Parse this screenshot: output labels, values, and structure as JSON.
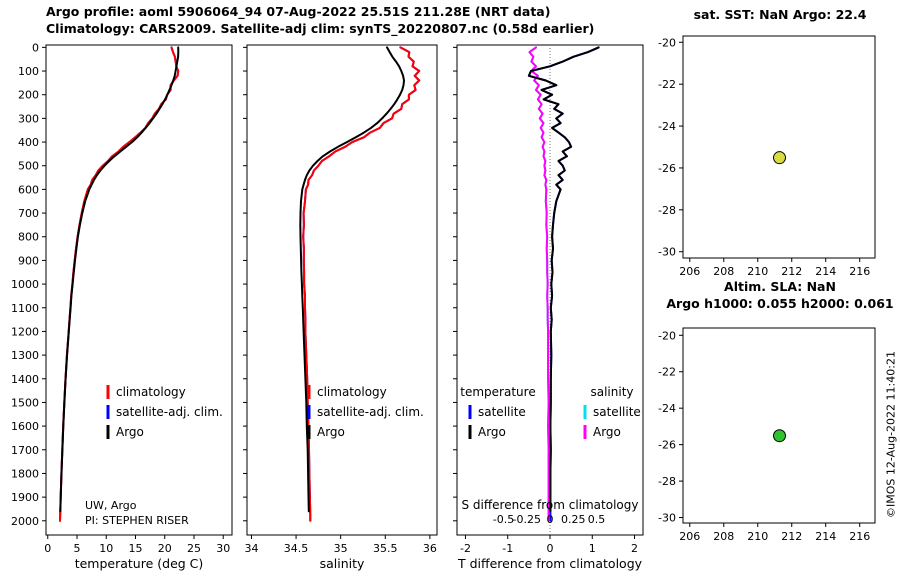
{
  "header": {
    "line1": "Argo profile: aoml 5906064_94 07-Aug-2022 25.51S 211.28E (NRT data)",
    "line2": "Climatology: CARS2009. Satellite-adj clim: synTS_20220807.nc (0.58d earlier)"
  },
  "watermark": "©IMOS 12-Aug-2022 11:40:21",
  "colors": {
    "climatology": "#ff0000",
    "satellite_adj": "#0000ff",
    "argo": "#000000",
    "satellite_T": "#0000ff",
    "satellite_S": "#00e0ee",
    "argo_S": "#ff00ff",
    "axis": "#000000"
  },
  "maps": {
    "sst": {
      "title": "sat. SST: NaN Argo: 22.4",
      "xlim": [
        205.6,
        216.9
      ],
      "ylim": [
        -19.7,
        -30.3
      ],
      "xticks": [
        206,
        208,
        210,
        212,
        214,
        216
      ],
      "yticks": [
        -20,
        -22,
        -24,
        -26,
        -28,
        -30
      ],
      "marker": {
        "lon": 211.28,
        "lat": -25.51,
        "color": "#d9dc40"
      }
    },
    "sla": {
      "title1": "Altim. SLA: NaN",
      "title2": "Argo h1000: 0.055 h2000: 0.061",
      "xlim": [
        205.6,
        216.9
      ],
      "ylim": [
        -19.6,
        -30.3
      ],
      "xticks": [
        206,
        208,
        210,
        212,
        214,
        216
      ],
      "yticks": [
        -20,
        -22,
        -24,
        -26,
        -28,
        -30
      ],
      "marker": {
        "lon": 211.28,
        "lat": -25.51,
        "color": "#2ec42e"
      }
    }
  },
  "chart_data": {
    "type": "line",
    "depth_ticks": [
      0,
      100,
      200,
      300,
      400,
      500,
      600,
      700,
      800,
      900,
      1000,
      1100,
      1200,
      1300,
      1400,
      1500,
      1600,
      1700,
      1800,
      1900,
      2000
    ],
    "depth": [
      0,
      20,
      40,
      60,
      80,
      100,
      120,
      140,
      160,
      180,
      200,
      220,
      240,
      260,
      280,
      300,
      320,
      340,
      360,
      380,
      400,
      420,
      440,
      460,
      480,
      500,
      520,
      540,
      560,
      580,
      600,
      650,
      700,
      750,
      800,
      850,
      900,
      950,
      1000,
      1050,
      1100,
      1150,
      1200,
      1300,
      1400,
      1500,
      1600,
      1700,
      1800,
      1900,
      1960,
      2000
    ],
    "panels": [
      {
        "name": "temperature",
        "xlabel": "temperature (deg C)",
        "xlim": [
          -0.3,
          31.5
        ],
        "xticks": [
          0,
          5,
          10,
          15,
          20,
          25,
          30
        ],
        "legend": [
          {
            "label": "climatology",
            "color": "#ff0000"
          },
          {
            "label": "satellite-adj. clim.",
            "color": "#0000ff"
          },
          {
            "label": "Argo",
            "color": "#000000"
          }
        ],
        "annotations": [
          "UW, Argo",
          "PI: STEPHEN RISER"
        ],
        "argo": [
          22.3,
          22.32,
          22.28,
          22.15,
          22.0,
          21.85,
          21.7,
          21.45,
          21.15,
          20.8,
          20.45,
          20.05,
          19.6,
          19.1,
          18.6,
          18.0,
          17.4,
          16.75,
          16.05,
          15.3,
          14.4,
          13.4,
          12.4,
          11.4,
          10.5,
          9.7,
          9.0,
          8.4,
          7.9,
          7.5,
          7.1,
          6.4,
          5.9,
          5.5,
          5.15,
          4.9,
          4.65,
          4.45,
          4.25,
          4.05,
          3.9,
          3.75,
          3.6,
          3.3,
          3.05,
          2.85,
          2.65,
          2.5,
          2.35,
          2.22,
          2.15,
          2.1
        ]
      },
      {
        "name": "salinity",
        "xlabel": "salinity",
        "xlim": [
          33.95,
          36.08
        ],
        "xticks": [
          34,
          34.5,
          35,
          35.5,
          36
        ],
        "legend": [
          {
            "label": "climatology",
            "color": "#ff0000"
          },
          {
            "label": "satellite-adj. clim.",
            "color": "#0000ff"
          },
          {
            "label": "Argo",
            "color": "#000000"
          }
        ],
        "argo": [
          35.52,
          35.55,
          35.58,
          35.62,
          35.655,
          35.68,
          35.7,
          35.71,
          35.705,
          35.69,
          35.665,
          35.635,
          35.6,
          35.56,
          35.515,
          35.465,
          35.41,
          35.34,
          35.26,
          35.17,
          35.07,
          34.97,
          34.88,
          34.8,
          34.74,
          34.69,
          34.65,
          34.62,
          34.6,
          34.585,
          34.57,
          34.555,
          34.55,
          34.548,
          34.55,
          34.553,
          34.557,
          34.56,
          34.565,
          34.57,
          34.575,
          34.58,
          34.585,
          34.595,
          34.605,
          34.615,
          34.62,
          34.63,
          34.635,
          34.64,
          34.643,
          34.645
        ]
      },
      {
        "name": "difference",
        "xlabel": "T difference from climatology",
        "xlim": [
          -2.2,
          2.2
        ],
        "xticks": [
          -2,
          -1,
          0,
          1,
          2
        ],
        "zero_line": true,
        "secondary": {
          "label": "S difference from climatology",
          "ticks": [
            -0.5,
            -0.25,
            0,
            0.25,
            0.5
          ],
          "scale_to_T": 2.2
        },
        "legend_groups": [
          {
            "header": "temperature",
            "items": [
              {
                "label": "satellite",
                "color": "#0000ff"
              },
              {
                "label": "Argo",
                "color": "#000000"
              }
            ]
          },
          {
            "header": "salinity",
            "items": [
              {
                "label": "satellite",
                "color": "#00e0ee"
              },
              {
                "label": "Argo",
                "color": "#ff00ff"
              }
            ]
          }
        ],
        "t_diff": [
          1.15,
          0.9,
          0.55,
          0.3,
          0.0,
          -0.45,
          -0.5,
          -0.1,
          0.15,
          -0.2,
          0.05,
          -0.15,
          0.2,
          0.1,
          0.3,
          0.15,
          0.25,
          0.05,
          0.2,
          0.35,
          0.45,
          0.5,
          0.3,
          0.4,
          0.2,
          0.3,
          0.35,
          0.2,
          0.3,
          0.15,
          0.25,
          0.15,
          0.1,
          0.07,
          0.05,
          0.07,
          0.04,
          0.06,
          0.03,
          0.05,
          0.02,
          0.04,
          0.02,
          0.03,
          0.02,
          0.02,
          0.01,
          0.02,
          0.01,
          0.01,
          0.01,
          0.01
        ],
        "s_diff": [
          -0.15,
          -0.22,
          -0.18,
          -0.2,
          -0.15,
          -0.2,
          -0.13,
          -0.17,
          -0.12,
          -0.15,
          -0.1,
          -0.13,
          -0.09,
          -0.12,
          -0.08,
          -0.11,
          -0.07,
          -0.1,
          -0.07,
          -0.09,
          -0.06,
          -0.08,
          -0.06,
          -0.07,
          -0.05,
          -0.06,
          -0.05,
          -0.06,
          -0.04,
          -0.05,
          -0.04,
          -0.045,
          -0.035,
          -0.04,
          -0.03,
          -0.035,
          -0.03,
          -0.03,
          -0.025,
          -0.03,
          -0.025,
          -0.025,
          -0.02,
          -0.02,
          -0.02,
          -0.015,
          -0.02,
          -0.015,
          -0.015,
          -0.015,
          -0.015,
          -0.015
        ]
      }
    ]
  }
}
